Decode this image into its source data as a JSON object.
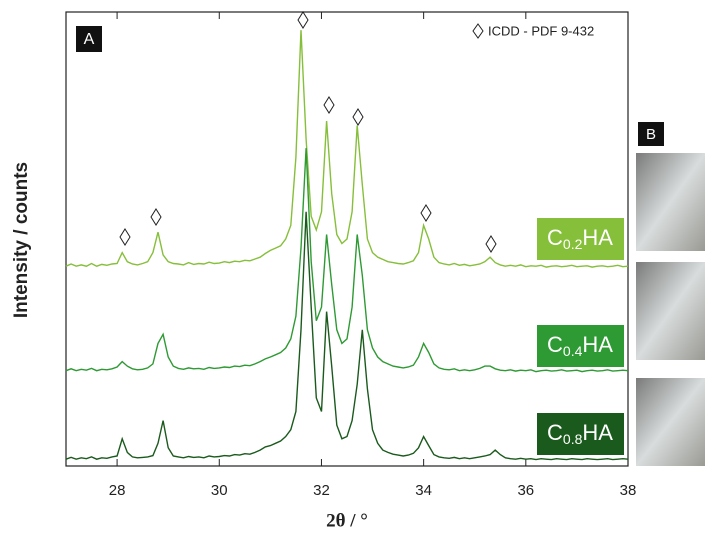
{
  "chart_data": {
    "type": "line",
    "xlabel": "2θ / °",
    "ylabel": "Intensity / counts",
    "panel_labels": [
      "A",
      "B"
    ],
    "reference": "ICDD - PDF 9-432",
    "xlim": [
      27,
      38
    ],
    "xticks": [
      28,
      30,
      32,
      34,
      36,
      38
    ],
    "ylim": [
      0,
      100
    ],
    "x": [
      27.0,
      27.1,
      27.2,
      27.3,
      27.4,
      27.5,
      27.6,
      27.7,
      27.8,
      27.9,
      28.0,
      28.1,
      28.2,
      28.3,
      28.4,
      28.5,
      28.6,
      28.7,
      28.8,
      28.9,
      29.0,
      29.1,
      29.2,
      29.3,
      29.4,
      29.5,
      29.6,
      29.7,
      29.8,
      29.9,
      30.0,
      30.1,
      30.2,
      30.3,
      30.4,
      30.5,
      30.6,
      30.7,
      30.8,
      30.9,
      31.0,
      31.1,
      31.2,
      31.3,
      31.4,
      31.5,
      31.6,
      31.7,
      31.8,
      31.9,
      32.0,
      32.1,
      32.2,
      32.3,
      32.4,
      32.5,
      32.6,
      32.7,
      32.8,
      32.9,
      33.0,
      33.1,
      33.2,
      33.3,
      33.4,
      33.5,
      33.6,
      33.7,
      33.8,
      33.9,
      34.0,
      34.1,
      34.2,
      34.3,
      34.4,
      34.5,
      34.6,
      34.7,
      34.8,
      34.9,
      35.0,
      35.1,
      35.2,
      35.3,
      35.4,
      35.5,
      35.6,
      35.7,
      35.8,
      35.9,
      36.0,
      36.1,
      36.2,
      36.3,
      36.4,
      36.5,
      36.6,
      36.7,
      36.8,
      36.9,
      37.0,
      37.1,
      37.2,
      37.3,
      37.4,
      37.5,
      37.6,
      37.7,
      37.8,
      37.9,
      38.0
    ],
    "series": [
      {
        "name": "C0.2HA",
        "color": "#86bf3a",
        "values": [
          44,
          44.5,
          44,
          44.3,
          44,
          44.6,
          44,
          44.4,
          44.2,
          44.5,
          44.6,
          47,
          45,
          44.5,
          44.3,
          44.6,
          45,
          47,
          51.5,
          46.5,
          45,
          44.6,
          44.5,
          44.3,
          44.8,
          44.4,
          44.6,
          44.5,
          44.9,
          44.6,
          44.7,
          45,
          44.8,
          45.1,
          45,
          45.3,
          45.2,
          45.6,
          46,
          46.8,
          47.5,
          48,
          48.5,
          50,
          53,
          68,
          96,
          72,
          55,
          52,
          56,
          76,
          60,
          51,
          49,
          50,
          56,
          75,
          62,
          50,
          47,
          46,
          45.5,
          45,
          44.8,
          44.6,
          44.5,
          44.8,
          45.2,
          47,
          53,
          50,
          46,
          44.8,
          44.5,
          44.3,
          44.6,
          44.2,
          44.4,
          44.1,
          44.3,
          44.5,
          45,
          46,
          44.8,
          44.3,
          44,
          44.2,
          44,
          44.3,
          43.9,
          44.1,
          44,
          44.2,
          43.8,
          44,
          44.1,
          43.9,
          44,
          44.2,
          43.9,
          44,
          44.1,
          43.8,
          44,
          44.1,
          43.9,
          44,
          44.2,
          43.9,
          44
        ]
      },
      {
        "name": "C0.4HA",
        "color": "#2e9a33",
        "values": [
          21,
          21.4,
          21,
          21.3,
          21.1,
          21.5,
          21,
          21.3,
          21.2,
          21.4,
          21.8,
          23,
          22,
          21.4,
          21.2,
          21.3,
          21.6,
          22.5,
          27,
          29,
          24,
          22,
          21.5,
          21.3,
          21.6,
          21.4,
          21.5,
          21.3,
          21.7,
          21.5,
          21.6,
          21.8,
          21.7,
          22,
          21.9,
          22.2,
          22.1,
          22.5,
          23,
          23.6,
          24,
          24.5,
          25,
          26,
          28,
          33,
          48,
          70,
          45,
          32,
          35,
          51,
          40,
          30,
          27,
          28,
          35,
          51,
          42,
          30,
          26,
          24,
          23,
          22.5,
          22,
          21.8,
          21.6,
          21.8,
          22.2,
          24,
          27,
          25,
          22.5,
          21.6,
          21.3,
          21.2,
          21.4,
          21,
          21.2,
          21,
          21.2,
          21.5,
          22,
          22,
          21.4,
          21.1,
          21,
          21.2,
          20.9,
          21.1,
          21,
          21.2,
          20.8,
          21,
          21.1,
          20.9,
          21,
          21.2,
          20.9,
          21,
          21.1,
          20.8,
          21,
          21.1,
          20.9,
          21,
          21.2,
          20.9,
          21,
          21.1,
          21
        ]
      },
      {
        "name": "C0.8HA",
        "color": "#1b5a1d",
        "values": [
          1.5,
          1.9,
          1.5,
          1.8,
          1.6,
          2,
          1.5,
          1.8,
          1.7,
          2,
          2.2,
          6,
          3,
          2,
          1.8,
          1.9,
          2,
          2.3,
          5,
          10,
          4,
          2.2,
          2,
          1.8,
          2.1,
          1.9,
          2,
          1.8,
          2.2,
          2,
          2.1,
          2.3,
          2.2,
          2.5,
          2.4,
          2.7,
          2.6,
          3,
          3.5,
          4.2,
          4.5,
          5,
          5.5,
          6.5,
          8,
          12,
          30,
          56,
          35,
          15,
          12,
          34,
          22,
          9,
          6,
          6.5,
          10,
          18,
          30,
          17,
          8,
          5,
          3.5,
          3,
          2.6,
          2.4,
          2.2,
          2.4,
          2.8,
          4,
          6.5,
          4.5,
          2.5,
          2,
          1.8,
          1.7,
          1.9,
          1.6,
          1.8,
          1.6,
          1.8,
          2,
          2.2,
          2.5,
          3.5,
          2.5,
          1.8,
          1.6,
          1.5,
          1.7,
          1.5,
          1.6,
          1.4,
          1.6,
          1.5,
          1.4,
          1.6,
          1.5,
          1.4,
          1.6,
          1.5,
          1.4,
          1.6,
          1.5,
          1.4,
          1.5,
          1.6,
          1.4,
          1.5,
          1.6,
          1.5
        ]
      }
    ]
  }
}
